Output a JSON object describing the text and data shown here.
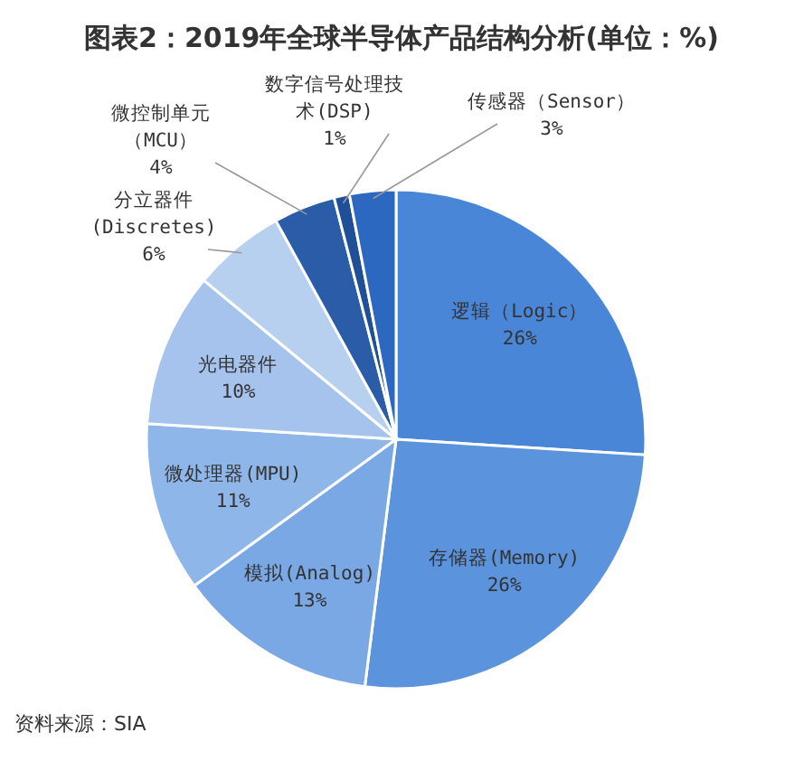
{
  "chart_data": {
    "type": "pie",
    "title": "图表2：2019年全球半导体产品结构分析(单位：%)",
    "categories": [
      "逻辑（Logic）",
      "存储器(Memory)",
      "模拟(Analog)",
      "微处理器(MPU)",
      "光电器件",
      "分立器件(Discretes)",
      "微控制单元（MCU）",
      "数字信号处理技术(DSP)",
      "传感器（Sensor）"
    ],
    "values": [
      26,
      26,
      13,
      11,
      10,
      6,
      4,
      1,
      3
    ],
    "colors": [
      "#4a86d8",
      "#5b93dc",
      "#7aa8e4",
      "#8fb6e8",
      "#a5c3ec",
      "#b8d0f0",
      "#2a5ca8",
      "#1f4f96",
      "#2d68c0"
    ],
    "value_labels": [
      "26%",
      "26%",
      "13%",
      "11%",
      "10%",
      "6%",
      "4%",
      "1%",
      "3%"
    ],
    "annotations": [
      "资料来源：SIA"
    ]
  }
}
